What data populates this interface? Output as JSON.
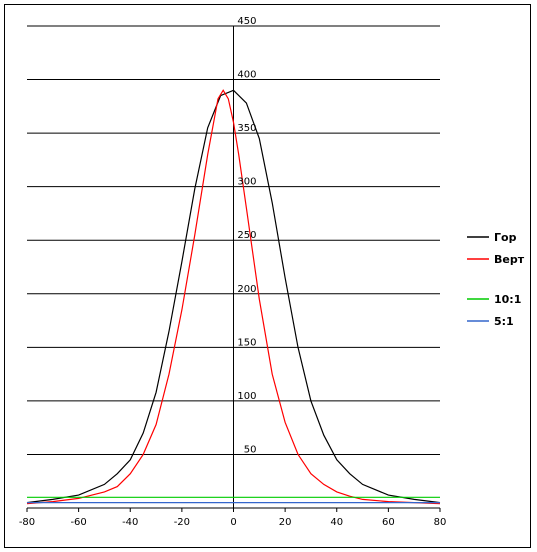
{
  "chart_data": {
    "type": "line",
    "xlim": [
      -80,
      80
    ],
    "ylim": [
      0,
      450
    ],
    "x_ticks": [
      "-80",
      "-60",
      "-40",
      "-20",
      "0",
      "20",
      "40",
      "60",
      "80"
    ],
    "y_ticks": [
      "50",
      "100",
      "150",
      "200",
      "250",
      "300",
      "350",
      "400",
      "450"
    ],
    "grid": "horizontal",
    "legend_position": "right",
    "series": [
      {
        "name": "Гор",
        "color": "#000000",
        "x": [
          -80,
          -70,
          -60,
          -50,
          -45,
          -40,
          -35,
          -30,
          -25,
          -20,
          -15,
          -10,
          -5,
          0,
          5,
          10,
          15,
          20,
          25,
          30,
          35,
          40,
          45,
          50,
          60,
          70,
          80
        ],
        "y": [
          5,
          8,
          12,
          22,
          32,
          45,
          70,
          108,
          165,
          230,
          298,
          355,
          385,
          390,
          378,
          345,
          285,
          215,
          150,
          100,
          68,
          45,
          32,
          22,
          12,
          8,
          5
        ]
      },
      {
        "name": "Верт",
        "color": "#ff0000",
        "x": [
          -80,
          -70,
          -60,
          -50,
          -45,
          -40,
          -35,
          -30,
          -25,
          -20,
          -15,
          -10,
          -6,
          -4,
          -2,
          0,
          2,
          5,
          10,
          15,
          20,
          25,
          30,
          35,
          40,
          45,
          50,
          60,
          70,
          80
        ],
        "y": [
          4,
          6,
          9,
          15,
          20,
          32,
          50,
          78,
          125,
          185,
          255,
          330,
          382,
          390,
          382,
          360,
          330,
          280,
          195,
          125,
          80,
          50,
          32,
          22,
          15,
          11,
          8,
          6,
          5,
          4
        ]
      },
      {
        "name": "10:1",
        "color": "#00cc00",
        "x": [
          -80,
          80
        ],
        "y": [
          10,
          10
        ]
      },
      {
        "name": "5:1",
        "color": "#3366cc",
        "x": [
          -80,
          80
        ],
        "y": [
          5,
          5
        ]
      }
    ]
  }
}
